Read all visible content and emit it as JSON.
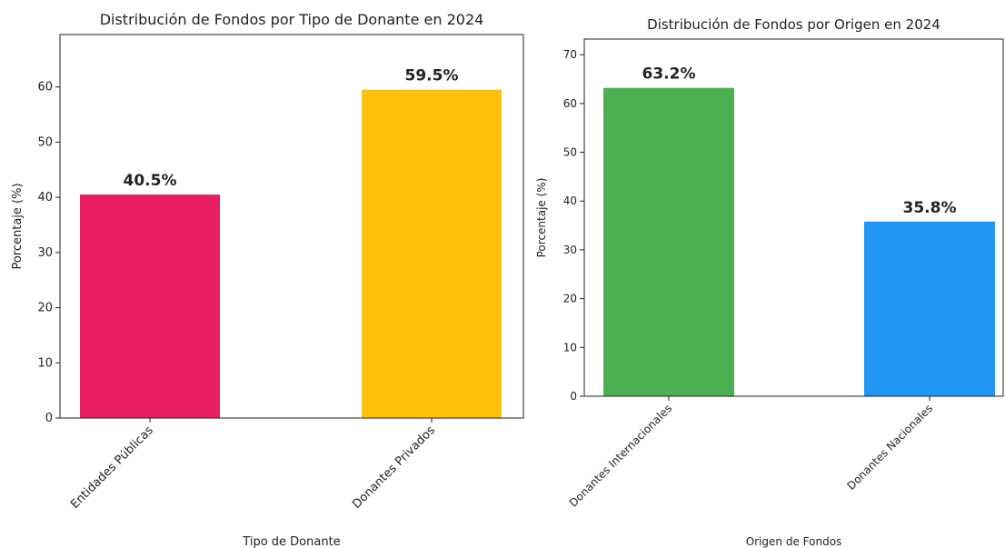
{
  "chart_data": [
    {
      "type": "bar",
      "title": "Distribución de Fondos por Tipo de Donante en 2024",
      "categories": [
        "Entidades Públicas",
        "Donantes Privados"
      ],
      "values": [
        40.5,
        59.5
      ],
      "value_labels": [
        "40.5%",
        "59.5%"
      ],
      "colors": [
        "#e91e63",
        "#ffc107"
      ],
      "xlabel": "Tipo de Donante",
      "ylabel": "Porcentaje (%)",
      "ylim": [
        0,
        69.5
      ],
      "yticks": [
        0,
        10,
        20,
        30,
        40,
        50,
        60
      ]
    },
    {
      "type": "bar",
      "title": "Distribución de Fondos por Origen en 2024",
      "categories": [
        "Donantes Internacionales",
        "Donantes Nacionales"
      ],
      "values": [
        63.2,
        35.8
      ],
      "value_labels": [
        "63.2%",
        "35.8%"
      ],
      "colors": [
        "#4caf50",
        "#2196f3"
      ],
      "xlabel": "Origen de Fondos",
      "ylabel": "Porcentaje (%)",
      "ylim": [
        0,
        73.2
      ],
      "yticks": [
        0,
        10,
        20,
        30,
        40,
        50,
        60,
        70
      ]
    }
  ]
}
